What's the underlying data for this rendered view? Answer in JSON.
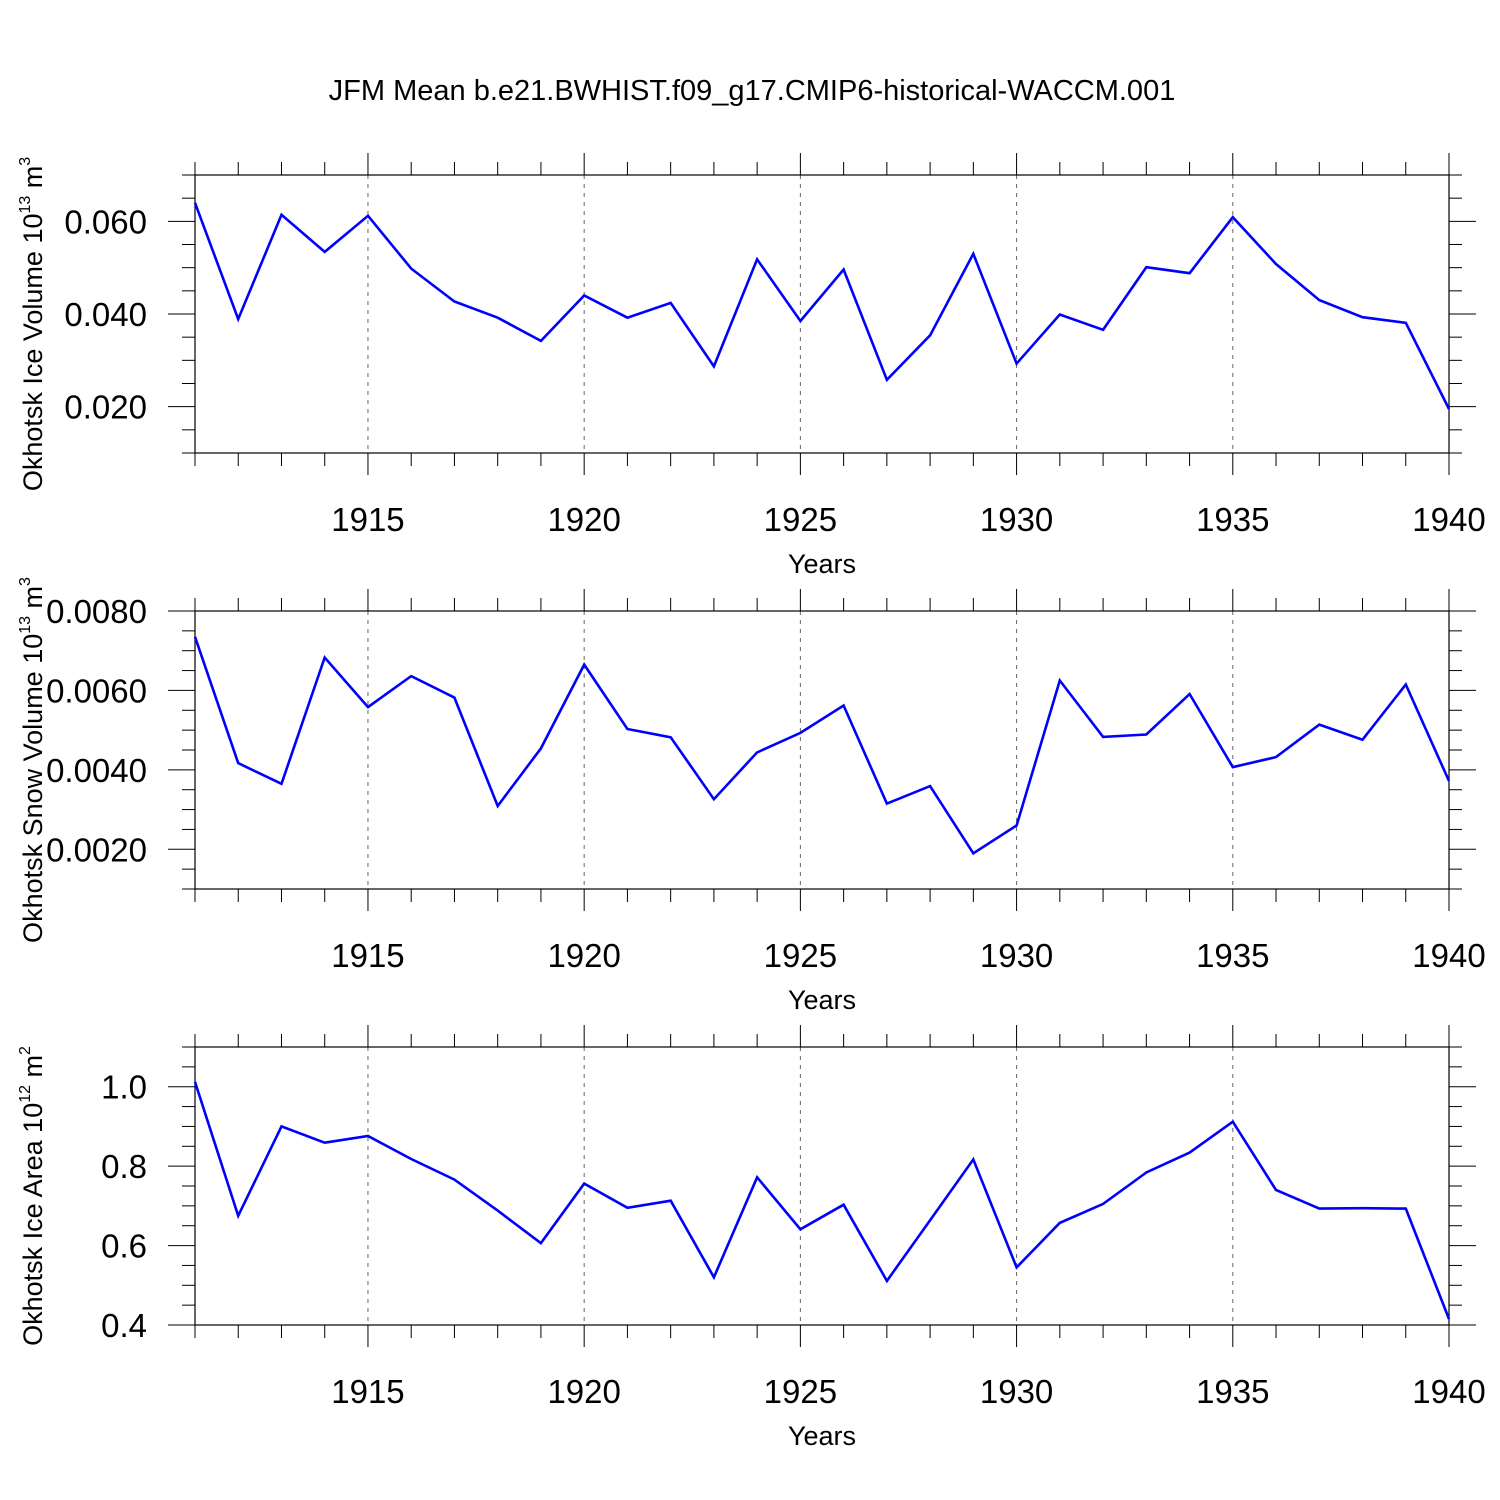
{
  "title": "JFM Mean b.e21.BWHIST.f09_g17.CMIP6-historical-WACCM.001",
  "line_color": "#0000ff",
  "chart_data": [
    {
      "type": "line",
      "name": "ice-volume",
      "xlabel": "Years",
      "ylabel": {
        "text": "Okhotsk Ice Volume 10",
        "sup": "13",
        "unit": " m",
        "unit_sup": "3"
      },
      "xlim": [
        1911,
        1940
      ],
      "ylim": [
        0.01,
        0.07
      ],
      "x_ticks": [
        1915,
        1920,
        1925,
        1930,
        1935,
        1940
      ],
      "x_tick_labels": [
        "1915",
        "1920",
        "1925",
        "1930",
        "1935",
        "1940"
      ],
      "y_ticks": [
        0.02,
        0.04,
        0.06
      ],
      "y_tick_labels": [
        "0.020",
        "0.040",
        "0.060"
      ],
      "y_minor_step": 0.005,
      "grid": "vertical dashed at major x ticks",
      "x": [
        1911,
        1912,
        1913,
        1914,
        1915,
        1916,
        1917,
        1918,
        1919,
        1920,
        1921,
        1922,
        1923,
        1924,
        1925,
        1926,
        1927,
        1928,
        1929,
        1930,
        1931,
        1932,
        1933,
        1934,
        1935,
        1936,
        1937,
        1938,
        1939,
        1940
      ],
      "values": [
        0.064,
        0.0389,
        0.0614,
        0.0534,
        0.0612,
        0.0498,
        0.0427,
        0.0392,
        0.0342,
        0.044,
        0.0392,
        0.0424,
        0.0287,
        0.0518,
        0.0385,
        0.0496,
        0.0258,
        0.0354,
        0.053,
        0.0293,
        0.0399,
        0.0366,
        0.0501,
        0.0488,
        0.0609,
        0.0508,
        0.043,
        0.0393,
        0.0381,
        0.0195
      ]
    },
    {
      "type": "line",
      "name": "snow-volume",
      "xlabel": "Years",
      "ylabel": {
        "text": "Okhotsk Snow Volume 10",
        "sup": "13",
        "unit": " m",
        "unit_sup": "3"
      },
      "xlim": [
        1911,
        1940
      ],
      "ylim": [
        0.001,
        0.008
      ],
      "x_ticks": [
        1915,
        1920,
        1925,
        1930,
        1935,
        1940
      ],
      "x_tick_labels": [
        "1915",
        "1920",
        "1925",
        "1930",
        "1935",
        "1940"
      ],
      "y_ticks": [
        0.002,
        0.004,
        0.006,
        0.008
      ],
      "y_tick_labels": [
        "0.0020",
        "0.0040",
        "0.0060",
        "0.0080"
      ],
      "y_minor_step": 0.0005,
      "grid": "vertical dashed at major x ticks",
      "x": [
        1911,
        1912,
        1913,
        1914,
        1915,
        1916,
        1917,
        1918,
        1919,
        1920,
        1921,
        1922,
        1923,
        1924,
        1925,
        1926,
        1927,
        1928,
        1929,
        1930,
        1931,
        1932,
        1933,
        1934,
        1935,
        1936,
        1937,
        1938,
        1939,
        1940
      ],
      "values": [
        0.00735,
        0.00417,
        0.00365,
        0.00683,
        0.00558,
        0.00636,
        0.00582,
        0.00309,
        0.00454,
        0.00665,
        0.00503,
        0.00482,
        0.00326,
        0.00444,
        0.00493,
        0.00562,
        0.00315,
        0.00359,
        0.0019,
        0.0026,
        0.00625,
        0.00483,
        0.00489,
        0.00591,
        0.00407,
        0.00432,
        0.00514,
        0.00476,
        0.00615,
        0.00372
      ]
    },
    {
      "type": "line",
      "name": "ice-area",
      "xlabel": "Years",
      "ylabel": {
        "text": "Okhotsk Ice Area 10",
        "sup": "12",
        "unit": " m",
        "unit_sup": "2"
      },
      "xlim": [
        1911,
        1940
      ],
      "ylim": [
        0.4,
        1.1
      ],
      "x_ticks": [
        1915,
        1920,
        1925,
        1930,
        1935,
        1940
      ],
      "x_tick_labels": [
        "1915",
        "1920",
        "1925",
        "1930",
        "1935",
        "1940"
      ],
      "y_ticks": [
        0.4,
        0.6,
        0.8,
        1.0
      ],
      "y_tick_labels": [
        "0.4",
        "0.6",
        "0.8",
        "1.0"
      ],
      "y_minor_step": 0.05,
      "grid": "vertical dashed at major x ticks",
      "x": [
        1911,
        1912,
        1913,
        1914,
        1915,
        1916,
        1917,
        1918,
        1919,
        1920,
        1921,
        1922,
        1923,
        1924,
        1925,
        1926,
        1927,
        1928,
        1929,
        1930,
        1931,
        1932,
        1933,
        1934,
        1935,
        1936,
        1937,
        1938,
        1939,
        1940
      ],
      "values": [
        1.012,
        0.675,
        0.9,
        0.859,
        0.876,
        0.818,
        0.766,
        0.688,
        0.606,
        0.756,
        0.695,
        0.713,
        0.52,
        0.772,
        0.641,
        0.703,
        0.511,
        0.664,
        0.817,
        0.545,
        0.657,
        0.705,
        0.784,
        0.834,
        0.912,
        0.74,
        0.693,
        0.694,
        0.693,
        0.415
      ]
    }
  ]
}
